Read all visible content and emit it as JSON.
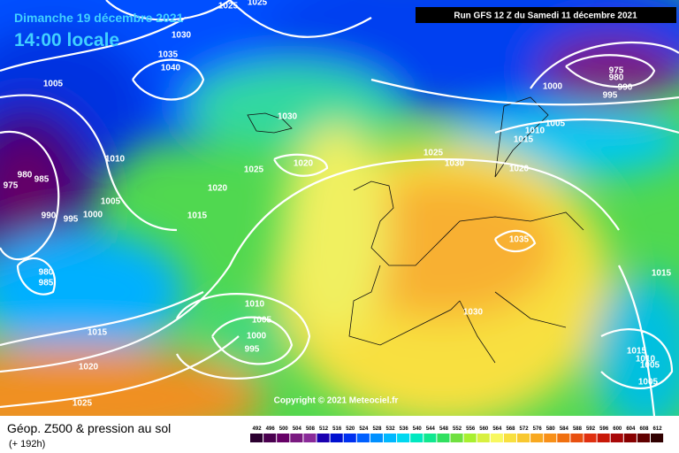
{
  "header": {
    "date": "Dimanche 19 décembre 2021",
    "time": "14:00 locale",
    "run": "Run GFS 12 Z du Samedi 11 décembre 2021"
  },
  "isobar_labels": [
    1025,
    1025,
    1030,
    1035,
    1040,
    1005,
    1030,
    1010,
    980,
    985,
    975,
    1005,
    1000,
    990,
    995,
    1025,
    1020,
    1020,
    1015,
    980,
    985,
    1010,
    1005,
    1000,
    995,
    1015,
    1020,
    1025,
    1025,
    1030,
    1020,
    1035,
    1030,
    1010,
    1015,
    1005,
    1000,
    975,
    980,
    990,
    995,
    1015,
    1015,
    1010,
    1005,
    1005
  ],
  "copyright": "Copyright © 2021 Meteociel.fr",
  "legend": {
    "title": "Géop. Z500 & pression au sol",
    "subtitle": "(+ 192h)",
    "values": [
      492,
      496,
      500,
      504,
      508,
      512,
      516,
      520,
      524,
      528,
      532,
      536,
      540,
      544,
      548,
      552,
      556,
      560,
      564,
      568,
      572,
      576,
      580,
      584,
      588,
      592,
      596,
      600,
      604,
      608,
      612
    ],
    "colors": [
      "#2b0030",
      "#4a004f",
      "#660066",
      "#7a1a80",
      "#8a2a99",
      "#1a00b0",
      "#0010d0",
      "#0030f0",
      "#0060ff",
      "#0090ff",
      "#00b8ff",
      "#00d8f0",
      "#00e8c0",
      "#10e890",
      "#30e060",
      "#70e040",
      "#a8f030",
      "#d8f040",
      "#f8f860",
      "#f8e040",
      "#f8c830",
      "#f8a820",
      "#f89018",
      "#f07010",
      "#e85010",
      "#e03010",
      "#c81808",
      "#a80808",
      "#880000",
      "#600000",
      "#300000"
    ]
  }
}
